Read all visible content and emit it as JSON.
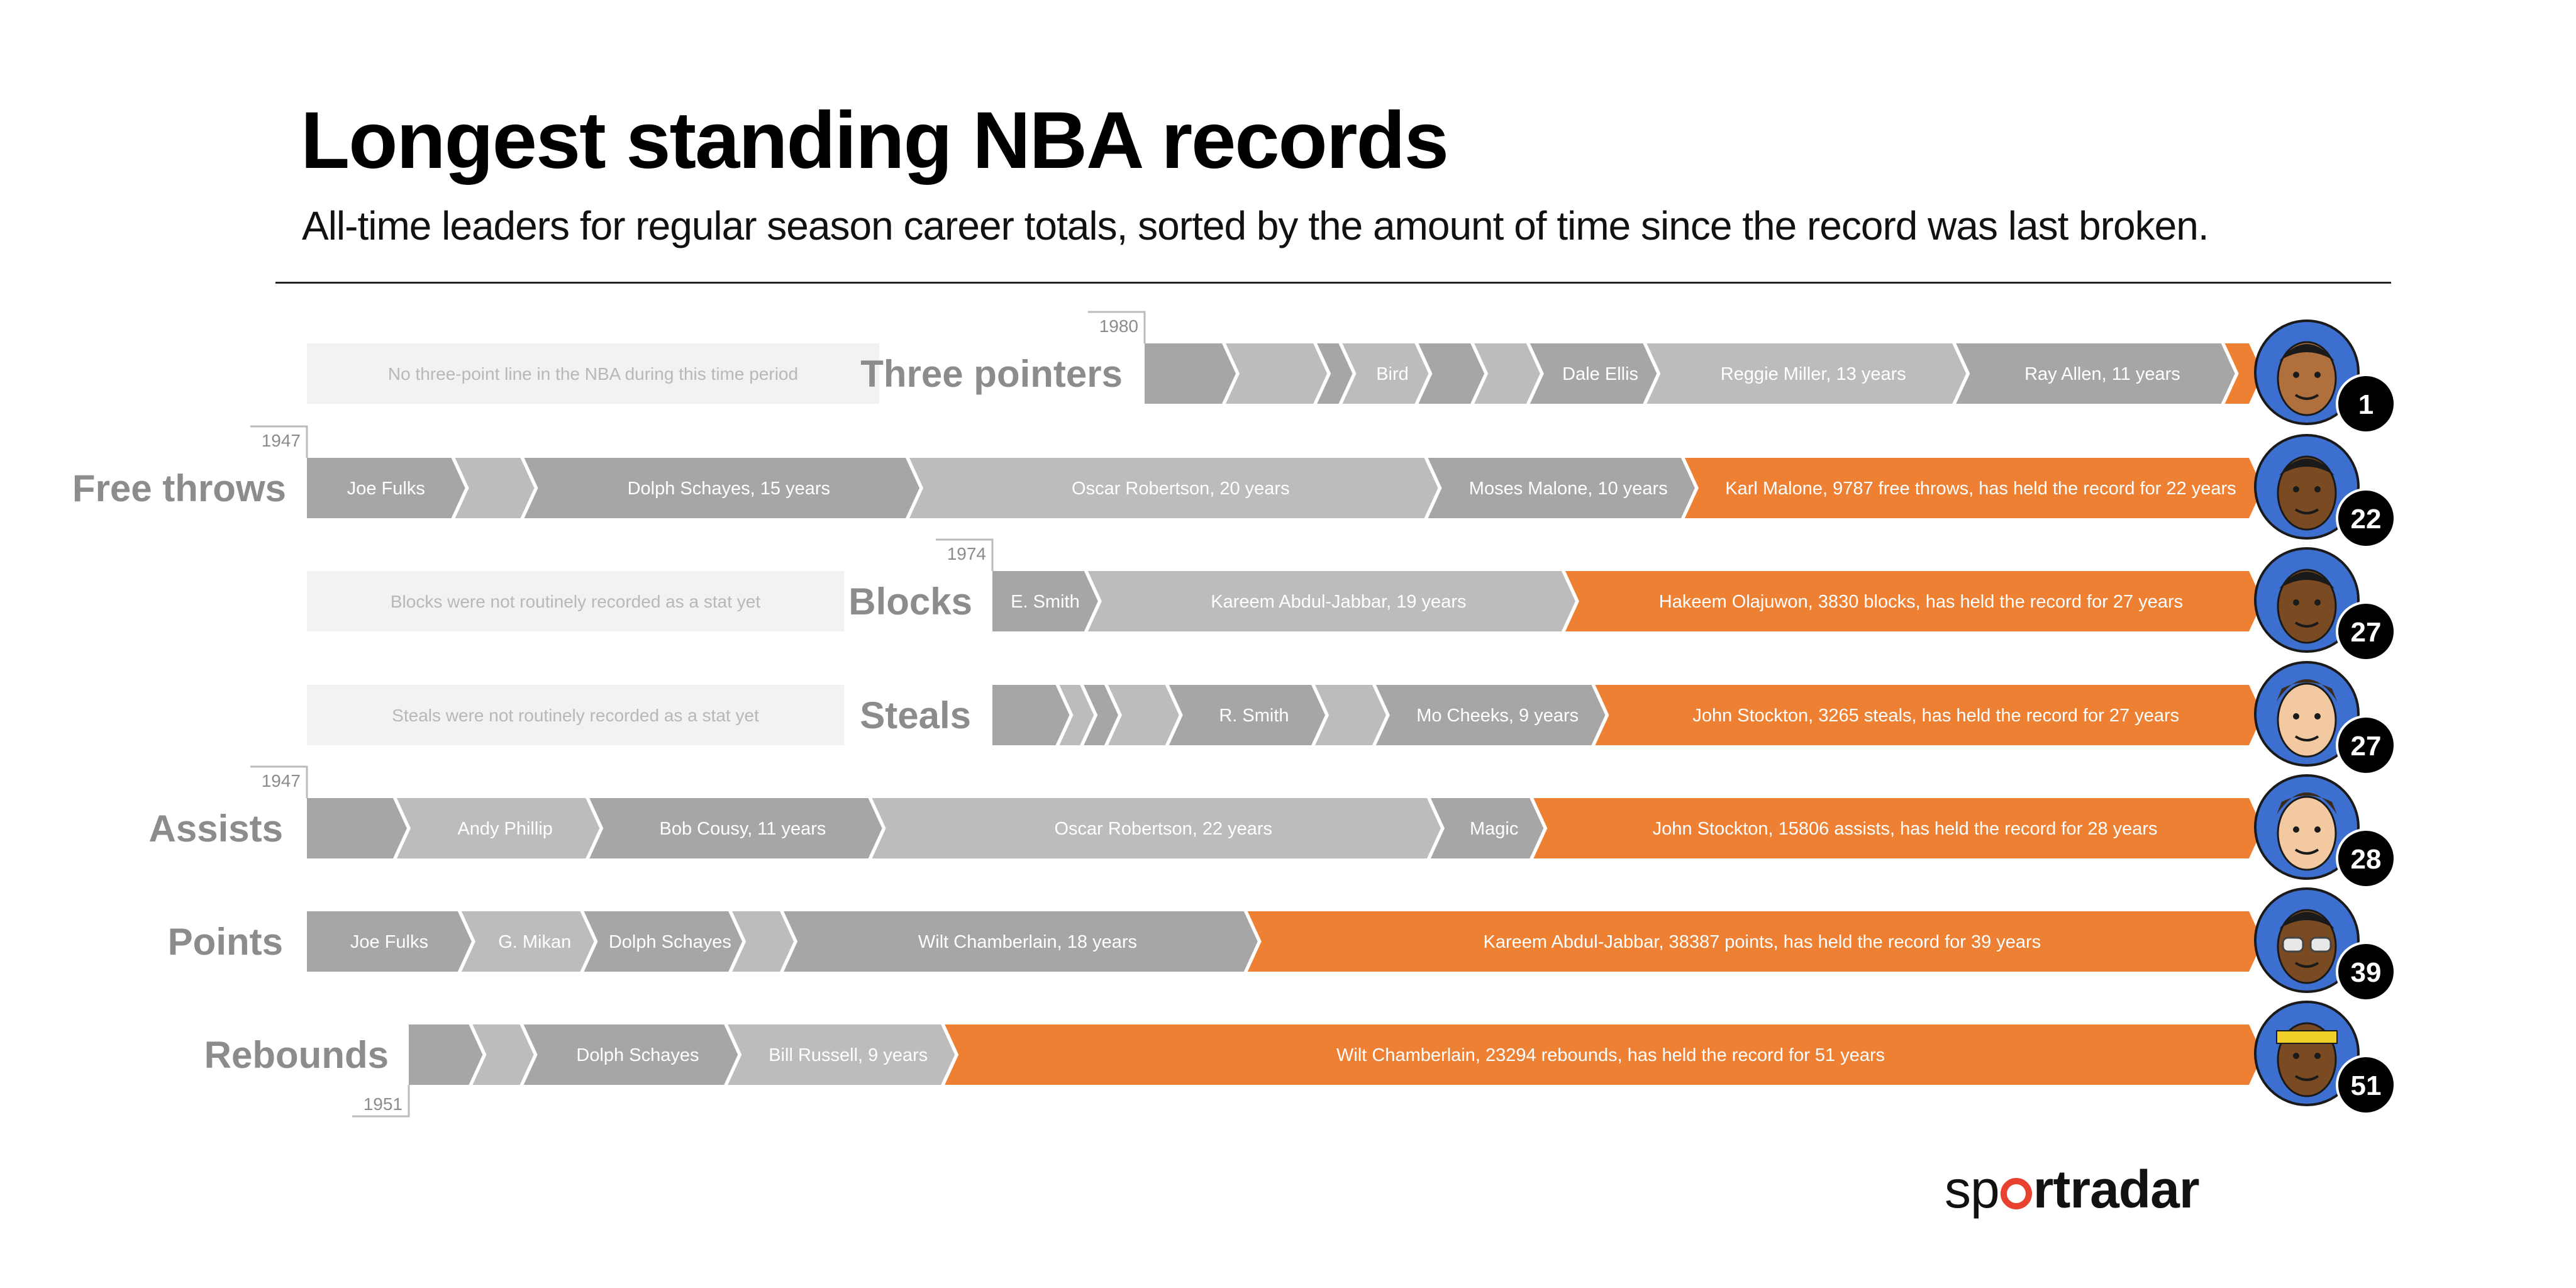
{
  "title": "Longest standing NBA records",
  "subtitle": "All-time leaders for regular season career totals, sorted by the amount of time since the record was last broken.",
  "brand": {
    "part1": "sp",
    "part2": "rt",
    "part3": "radar",
    "accent": "#e8412f"
  },
  "colors": {
    "past_dark": "#a6a6a6",
    "past_light": "#bcbcbc",
    "current": "#ee8033",
    "note_bg": "#f2f2f2",
    "badge": "#000000"
  },
  "chart_data": {
    "type": "timeline-bars",
    "title": "Longest standing NBA records",
    "subtitle": "All-time leaders for regular season career totals, sorted by the amount of time since the record was last broken.",
    "rows": [
      {
        "stat": "Three pointers",
        "start_year": "1980",
        "note": "No three-point line in the NBA during this time period",
        "years_held": "1",
        "portrait": "ray-allen",
        "segments": [
          {
            "label": "",
            "weight": 1.6
          },
          {
            "label": "",
            "weight": 1.8
          },
          {
            "label": "",
            "weight": 0.5
          },
          {
            "label": "Bird",
            "weight": 1.5
          },
          {
            "label": "",
            "weight": 1.1
          },
          {
            "label": "",
            "weight": 1.1
          },
          {
            "label": "Dale Ellis",
            "weight": 2.3
          },
          {
            "label": "Reggie Miller, 13 years",
            "weight": 6.1
          },
          {
            "label": "Ray Allen, 11 years",
            "weight": 5.3
          },
          {
            "label": "",
            "weight": 0.55,
            "current": true
          }
        ]
      },
      {
        "stat": "Free throws",
        "start_year": "1947",
        "note": "",
        "years_held": "22",
        "portrait": "karl-malone",
        "segments": [
          {
            "label": "Joe Fulks",
            "weight": 3
          },
          {
            "label": "",
            "weight": 1.4
          },
          {
            "label": "Dolph Schayes, 15 years",
            "weight": 7.8
          },
          {
            "label": "Oscar Robertson, 20 years",
            "weight": 10.5
          },
          {
            "label": "Moses Malone, 10 years",
            "weight": 5.2
          },
          {
            "label": "Karl Malone, 9787 free throws, has held the record for 22 years",
            "weight": 11.5,
            "current": true
          }
        ]
      },
      {
        "stat": "Blocks",
        "start_year": "1974",
        "note": "Blocks were not routinely recorded as a stat yet",
        "years_held": "27",
        "portrait": "hakeem-olajuwon",
        "segments": [
          {
            "label": "E. Smith",
            "weight": 1.5
          },
          {
            "label": "Kareem Abdul-Jabbar, 19 years",
            "weight": 7.5
          },
          {
            "label": "Hakeem Olajuwon, 3830 blocks, has held the record for 27 years",
            "weight": 10.8,
            "current": true
          }
        ]
      },
      {
        "stat": "Steals",
        "start_year": "",
        "note": "Steals were not routinely recorded as a stat yet",
        "years_held": "27",
        "portrait": "john-stockton",
        "segments": [
          {
            "label": "",
            "weight": 1.1
          },
          {
            "label": "",
            "weight": 0.4
          },
          {
            "label": "",
            "weight": 0.4
          },
          {
            "label": "",
            "weight": 1.0
          },
          {
            "label": "R. Smith",
            "weight": 2.4
          },
          {
            "label": "",
            "weight": 1.0
          },
          {
            "label": "Mo Cheeks, 9 years",
            "weight": 3.6
          },
          {
            "label": "John Stockton, 3265 steals, has held the record for 27 years",
            "weight": 10.8,
            "current": true
          }
        ]
      },
      {
        "stat": "Assists",
        "start_year": "1947",
        "note": "",
        "years_held": "28",
        "portrait": "john-stockton",
        "segments": [
          {
            "label": "",
            "weight": 1.4
          },
          {
            "label": "Andy Phillip",
            "weight": 3.0
          },
          {
            "label": "Bob Cousy, 11 years",
            "weight": 4.4
          },
          {
            "label": "Oscar Robertson, 22 years",
            "weight": 8.7
          },
          {
            "label": "Magic",
            "weight": 1.6
          },
          {
            "label": "John Stockton, 15806 assists, has held the record for 28 years",
            "weight": 11.2,
            "current": true
          }
        ]
      },
      {
        "stat": "Points",
        "start_year": "",
        "note": "",
        "years_held": "39",
        "portrait": "kareem-abdul-jabbar",
        "segments": [
          {
            "label": "Joe Fulks",
            "weight": 2.4
          },
          {
            "label": "G. Mikan",
            "weight": 1.9
          },
          {
            "label": "Dolph Schayes",
            "weight": 2.3
          },
          {
            "label": "",
            "weight": 0.8
          },
          {
            "label": "Wilt Chamberlain, 18 years",
            "weight": 7.2
          },
          {
            "label": "Kareem Abdul-Jabbar, 38387 points, has held the record for 39 years",
            "weight": 15.6,
            "current": true
          }
        ]
      },
      {
        "stat": "Rebounds",
        "start_year": "1951",
        "note": "",
        "years_held": "51",
        "portrait": "wilt-chamberlain",
        "segments": [
          {
            "label": "",
            "weight": 1.0
          },
          {
            "label": "",
            "weight": 0.8
          },
          {
            "label": "Dolph Schayes",
            "weight": 3.2
          },
          {
            "label": "Bill Russell, 9 years",
            "weight": 3.4
          },
          {
            "label": "Wilt Chamberlain, 23294 rebounds, has held the record for 51 years",
            "weight": 20.5,
            "current": true
          }
        ]
      }
    ]
  }
}
